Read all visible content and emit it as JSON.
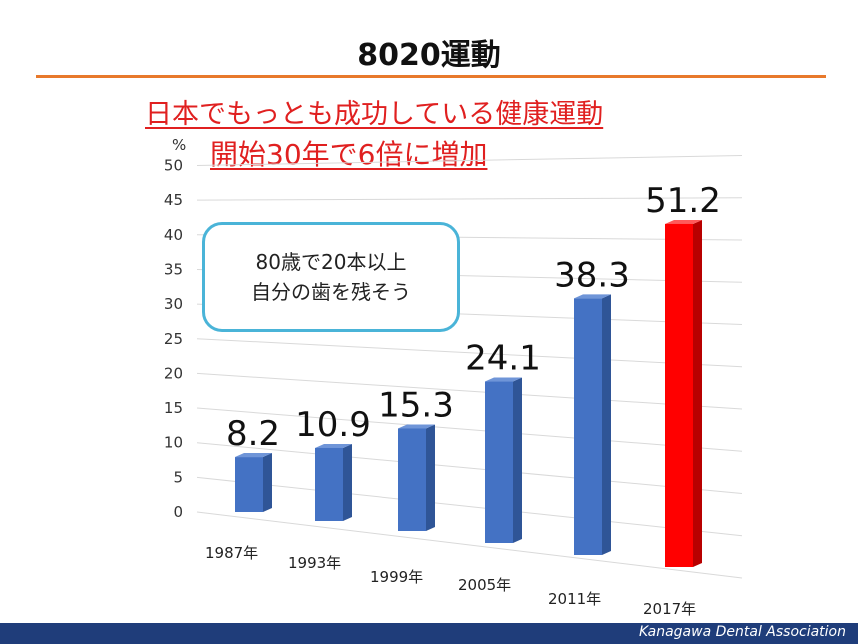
{
  "slide": {
    "title": "8020運動",
    "subtitle_line1": "日本でもっとも成功している健康運動",
    "subtitle_line2": "開始30年で6倍に増加",
    "callout_line1": "80歳で20本以上",
    "callout_line2": "自分の歯を残そう",
    "footer": "Kanagawa Dental Association"
  },
  "colors": {
    "accent_line": "#e8792b",
    "subtitle_text": "#e02020",
    "bar_default": "#4472c4",
    "bar_highlight": "#ff0000",
    "callout_border": "#4ab4d8",
    "footer_bg": "#1f3d7a"
  },
  "chart_data": {
    "type": "bar",
    "categories": [
      "1987年",
      "1993年",
      "1999年",
      "2005年",
      "2011年",
      "2017年"
    ],
    "values": [
      8.2,
      10.9,
      15.3,
      24.1,
      38.3,
      51.2
    ],
    "data_labels": [
      "8.2",
      "10.9",
      "15.3",
      "24.1",
      "38.3",
      "51.2"
    ],
    "highlight_index": 5,
    "ylabel": "%",
    "ylim": [
      0,
      50
    ],
    "yticks": [
      0,
      5,
      10,
      15,
      20,
      25,
      30,
      35,
      40,
      45,
      50
    ],
    "grid": true,
    "style": "3d-perspective"
  }
}
